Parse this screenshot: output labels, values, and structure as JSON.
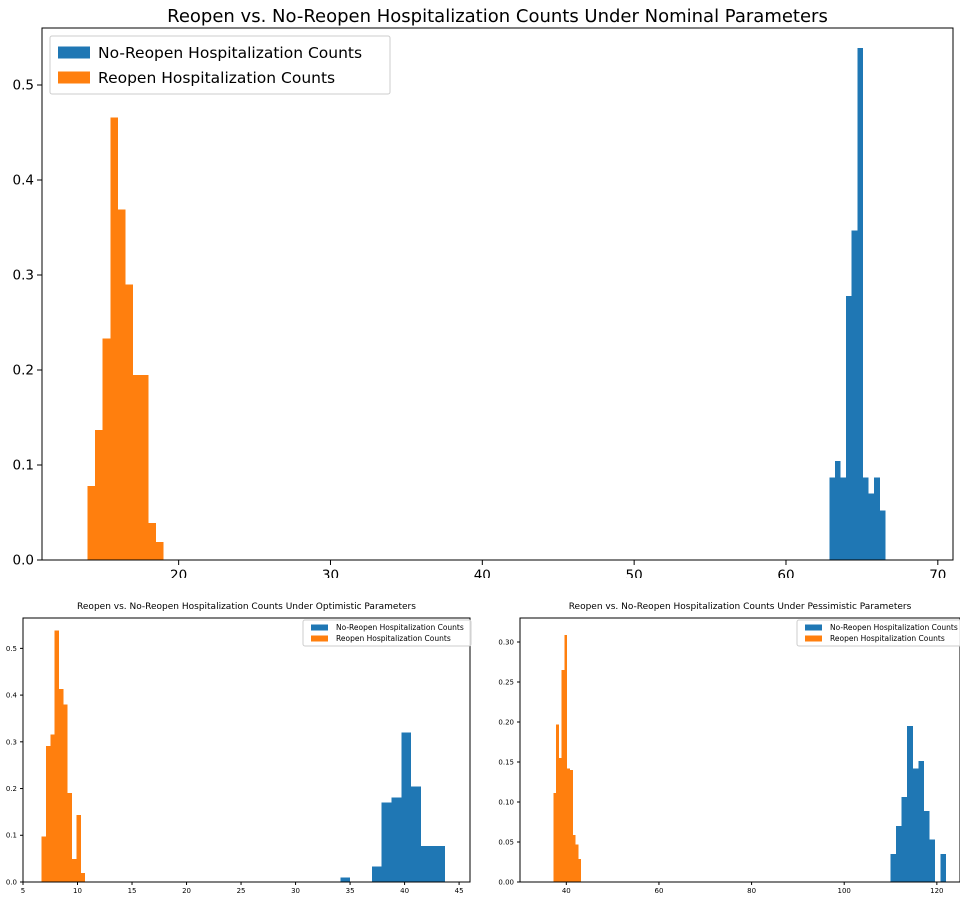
{
  "colors": {
    "no_reopen": "#1f77b4",
    "reopen": "#ff7f0e"
  },
  "chart_data": [
    {
      "id": "nominal",
      "type": "bar",
      "title": "Reopen vs. No-Reopen Hospitalization Counts Under Nominal Parameters",
      "xlabel": "",
      "ylabel": "",
      "xlim": [
        11,
        71
      ],
      "ylim": [
        0,
        0.56
      ],
      "xticks": [
        20,
        30,
        40,
        50,
        60,
        70
      ],
      "yticks": [
        0.0,
        0.1,
        0.2,
        0.3,
        0.4,
        0.5
      ],
      "ytick_labels": [
        "0.0",
        "0.1",
        "0.2",
        "0.3",
        "0.4",
        "0.5"
      ],
      "grid": false,
      "legend": "top-left",
      "series": [
        {
          "name": "No-Reopen Hospitalization Counts",
          "color": "#1f77b4",
          "x_start": 62.85,
          "bin_width": 0.37,
          "values": [
            0.087,
            0.104,
            0.087,
            0.278,
            0.347,
            0.539,
            0.087,
            0.07,
            0.087,
            0.052
          ]
        },
        {
          "name": "Reopen Hospitalization Counts",
          "color": "#ff7f0e",
          "x_start": 14.0,
          "bin_width": 0.5,
          "values": [
            0.078,
            0.137,
            0.233,
            0.466,
            0.369,
            0.29,
            0.195,
            0.195,
            0.039,
            0.019
          ]
        }
      ]
    },
    {
      "id": "optimistic",
      "type": "bar",
      "title": "Reopen vs. No-Reopen Hospitalization Counts Under Optimistic Parameters",
      "xlabel": "",
      "ylabel": "",
      "xlim": [
        5,
        46
      ],
      "ylim": [
        0,
        0.565
      ],
      "xticks": [
        5,
        10,
        15,
        20,
        25,
        30,
        35,
        40,
        45
      ],
      "yticks": [
        0.0,
        0.1,
        0.2,
        0.3,
        0.4,
        0.5
      ],
      "ytick_labels": [
        "0.0",
        "0.1",
        "0.2",
        "0.3",
        "0.4",
        "0.5"
      ],
      "grid": false,
      "legend": "top-right",
      "series": [
        {
          "name": "No-Reopen Hospitalization Counts",
          "color": "#1f77b4",
          "bars": [
            {
              "x": 34.1,
              "w": 0.9,
              "v": 0.01
            },
            {
              "x": 37.0,
              "w": 0.9,
              "v": 0.033
            },
            {
              "x": 37.9,
              "w": 0.9,
              "v": 0.17
            },
            {
              "x": 38.8,
              "w": 0.9,
              "v": 0.181
            },
            {
              "x": 39.7,
              "w": 0.9,
              "v": 0.32
            },
            {
              "x": 40.6,
              "w": 0.9,
              "v": 0.204
            },
            {
              "x": 41.5,
              "w": 0.9,
              "v": 0.077
            },
            {
              "x": 42.4,
              "w": 0.9,
              "v": 0.077
            },
            {
              "x": 43.3,
              "w": 0.4,
              "v": 0.077
            }
          ]
        },
        {
          "name": "Reopen Hospitalization Counts",
          "color": "#ff7f0e",
          "bars": [
            {
              "x": 6.7,
              "w": 0.4,
              "v": 0.097
            },
            {
              "x": 7.1,
              "w": 0.4,
              "v": 0.291
            },
            {
              "x": 7.5,
              "w": 0.4,
              "v": 0.316
            },
            {
              "x": 7.9,
              "w": 0.4,
              "v": 0.538
            },
            {
              "x": 8.3,
              "w": 0.4,
              "v": 0.413
            },
            {
              "x": 8.7,
              "w": 0.4,
              "v": 0.38
            },
            {
              "x": 9.1,
              "w": 0.4,
              "v": 0.19
            },
            {
              "x": 9.5,
              "w": 0.4,
              "v": 0.049
            },
            {
              "x": 9.9,
              "w": 0.4,
              "v": 0.143
            },
            {
              "x": 10.3,
              "w": 0.4,
              "v": 0.019
            }
          ]
        }
      ]
    },
    {
      "id": "pessimistic",
      "type": "bar",
      "title": "Reopen vs. No-Reopen Hospitalization Counts Under Pessimistic Parameters",
      "xlabel": "",
      "ylabel": "",
      "xlim": [
        30,
        125
      ],
      "ylim": [
        0,
        0.33
      ],
      "xticks": [
        40,
        60,
        80,
        100,
        120
      ],
      "yticks": [
        0.0,
        0.05,
        0.1,
        0.15,
        0.2,
        0.25,
        0.3
      ],
      "ytick_labels": [
        "0.00",
        "0.05",
        "0.10",
        "0.15",
        "0.20",
        "0.25",
        "0.30"
      ],
      "grid": false,
      "legend": "top-right",
      "series": [
        {
          "name": "No-Reopen Hospitalization Counts",
          "color": "#1f77b4",
          "x_start": 110.0,
          "bin_width": 1.2,
          "values": [
            0.035,
            0.07,
            0.106,
            0.195,
            0.142,
            0.151,
            0.089,
            0.053,
            0.0,
            0.035
          ]
        },
        {
          "name": "Reopen Hospitalization Counts",
          "color": "#ff7f0e",
          "x_start": 37.2,
          "bin_width": 0.6,
          "values": [
            0.111,
            0.197,
            0.155,
            0.265,
            0.309,
            0.142,
            0.14,
            0.059,
            0.047,
            0.029
          ]
        }
      ]
    }
  ]
}
